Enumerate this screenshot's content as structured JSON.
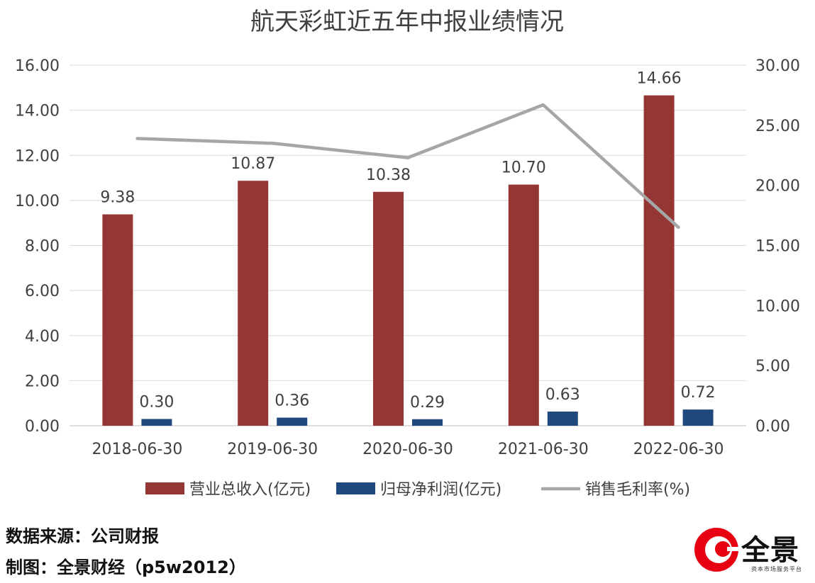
{
  "chart_data": {
    "type": "bar",
    "title": "航天彩虹近五年中报业绩情况",
    "categories": [
      "2018-06-30",
      "2019-06-30",
      "2020-06-30",
      "2021-06-30",
      "2022-06-30"
    ],
    "series": [
      {
        "name": "营业总收入(亿元)",
        "type": "bar",
        "axis": "left",
        "color": "#943634",
        "values": [
          9.38,
          10.87,
          10.38,
          10.7,
          14.66
        ]
      },
      {
        "name": "归母净利润(亿元)",
        "type": "bar",
        "axis": "left",
        "color": "#1f497d",
        "values": [
          0.3,
          0.36,
          0.29,
          0.63,
          0.72
        ]
      },
      {
        "name": "销售毛利率(%)",
        "type": "line",
        "axis": "right",
        "color": "#a6a6a6",
        "values": [
          23.9,
          23.5,
          22.3,
          26.7,
          16.5
        ]
      }
    ],
    "left_axis": {
      "ylim": [
        0,
        16
      ],
      "ticks": [
        "0.00",
        "2.00",
        "4.00",
        "6.00",
        "8.00",
        "10.00",
        "12.00",
        "14.00",
        "16.00"
      ]
    },
    "right_axis": {
      "ylim": [
        0,
        30
      ],
      "ticks": [
        "0.00",
        "5.00",
        "10.00",
        "15.00",
        "20.00",
        "25.00",
        "30.00"
      ]
    },
    "grid": true,
    "legend_position": "bottom",
    "data_labels": true
  },
  "footer": {
    "source": "数据来源：公司财报",
    "maker": "制图：全景财经（p5w2012）"
  },
  "logo": {
    "name": "全景",
    "tagline": "资本市场服务平台",
    "color": "#e60012"
  }
}
